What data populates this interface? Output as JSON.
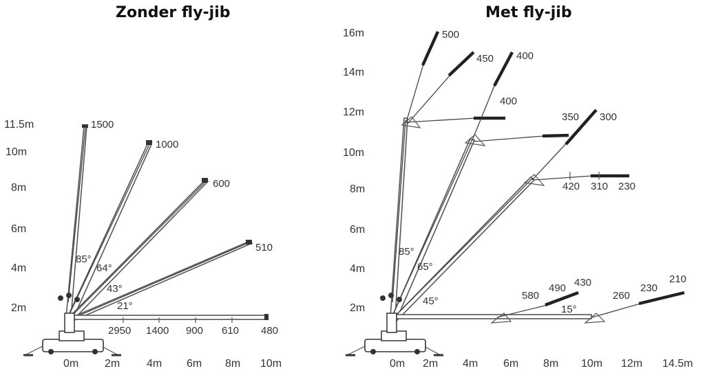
{
  "titles": {
    "left": "Zonder fly-jib",
    "right": "Met fly-jib"
  },
  "left": {
    "y_labels": [
      "11.5m",
      "10m",
      "8m",
      "6m",
      "4m",
      "2m"
    ],
    "x_labels": [
      "0m",
      "2m",
      "4m",
      "6m",
      "8m",
      "10m"
    ],
    "tip_loads": [
      "1500",
      "1000",
      "600",
      "510",
      "480"
    ],
    "angles": [
      "85°",
      "64°",
      "43°",
      "21°"
    ],
    "horizontal_loads": [
      "2950",
      "1400",
      "900",
      "610"
    ]
  },
  "right": {
    "y_labels": [
      "16m",
      "14m",
      "12m",
      "10m",
      "8m",
      "6m",
      "4m",
      "2m"
    ],
    "x_labels": [
      "0m",
      "2m",
      "4m",
      "6m",
      "8m",
      "10m",
      "12m",
      "14.5m"
    ],
    "angles": [
      "85°",
      "65°",
      "45°",
      "15°"
    ],
    "loads": {
      "a": "500",
      "b": "450",
      "c": "400",
      "d": "400",
      "e": "350",
      "f": "300",
      "g": "420",
      "h": "310",
      "i": "230",
      "j": "580",
      "k": "490",
      "l": "430",
      "m": "260",
      "n": "230",
      "o": "210"
    }
  }
}
